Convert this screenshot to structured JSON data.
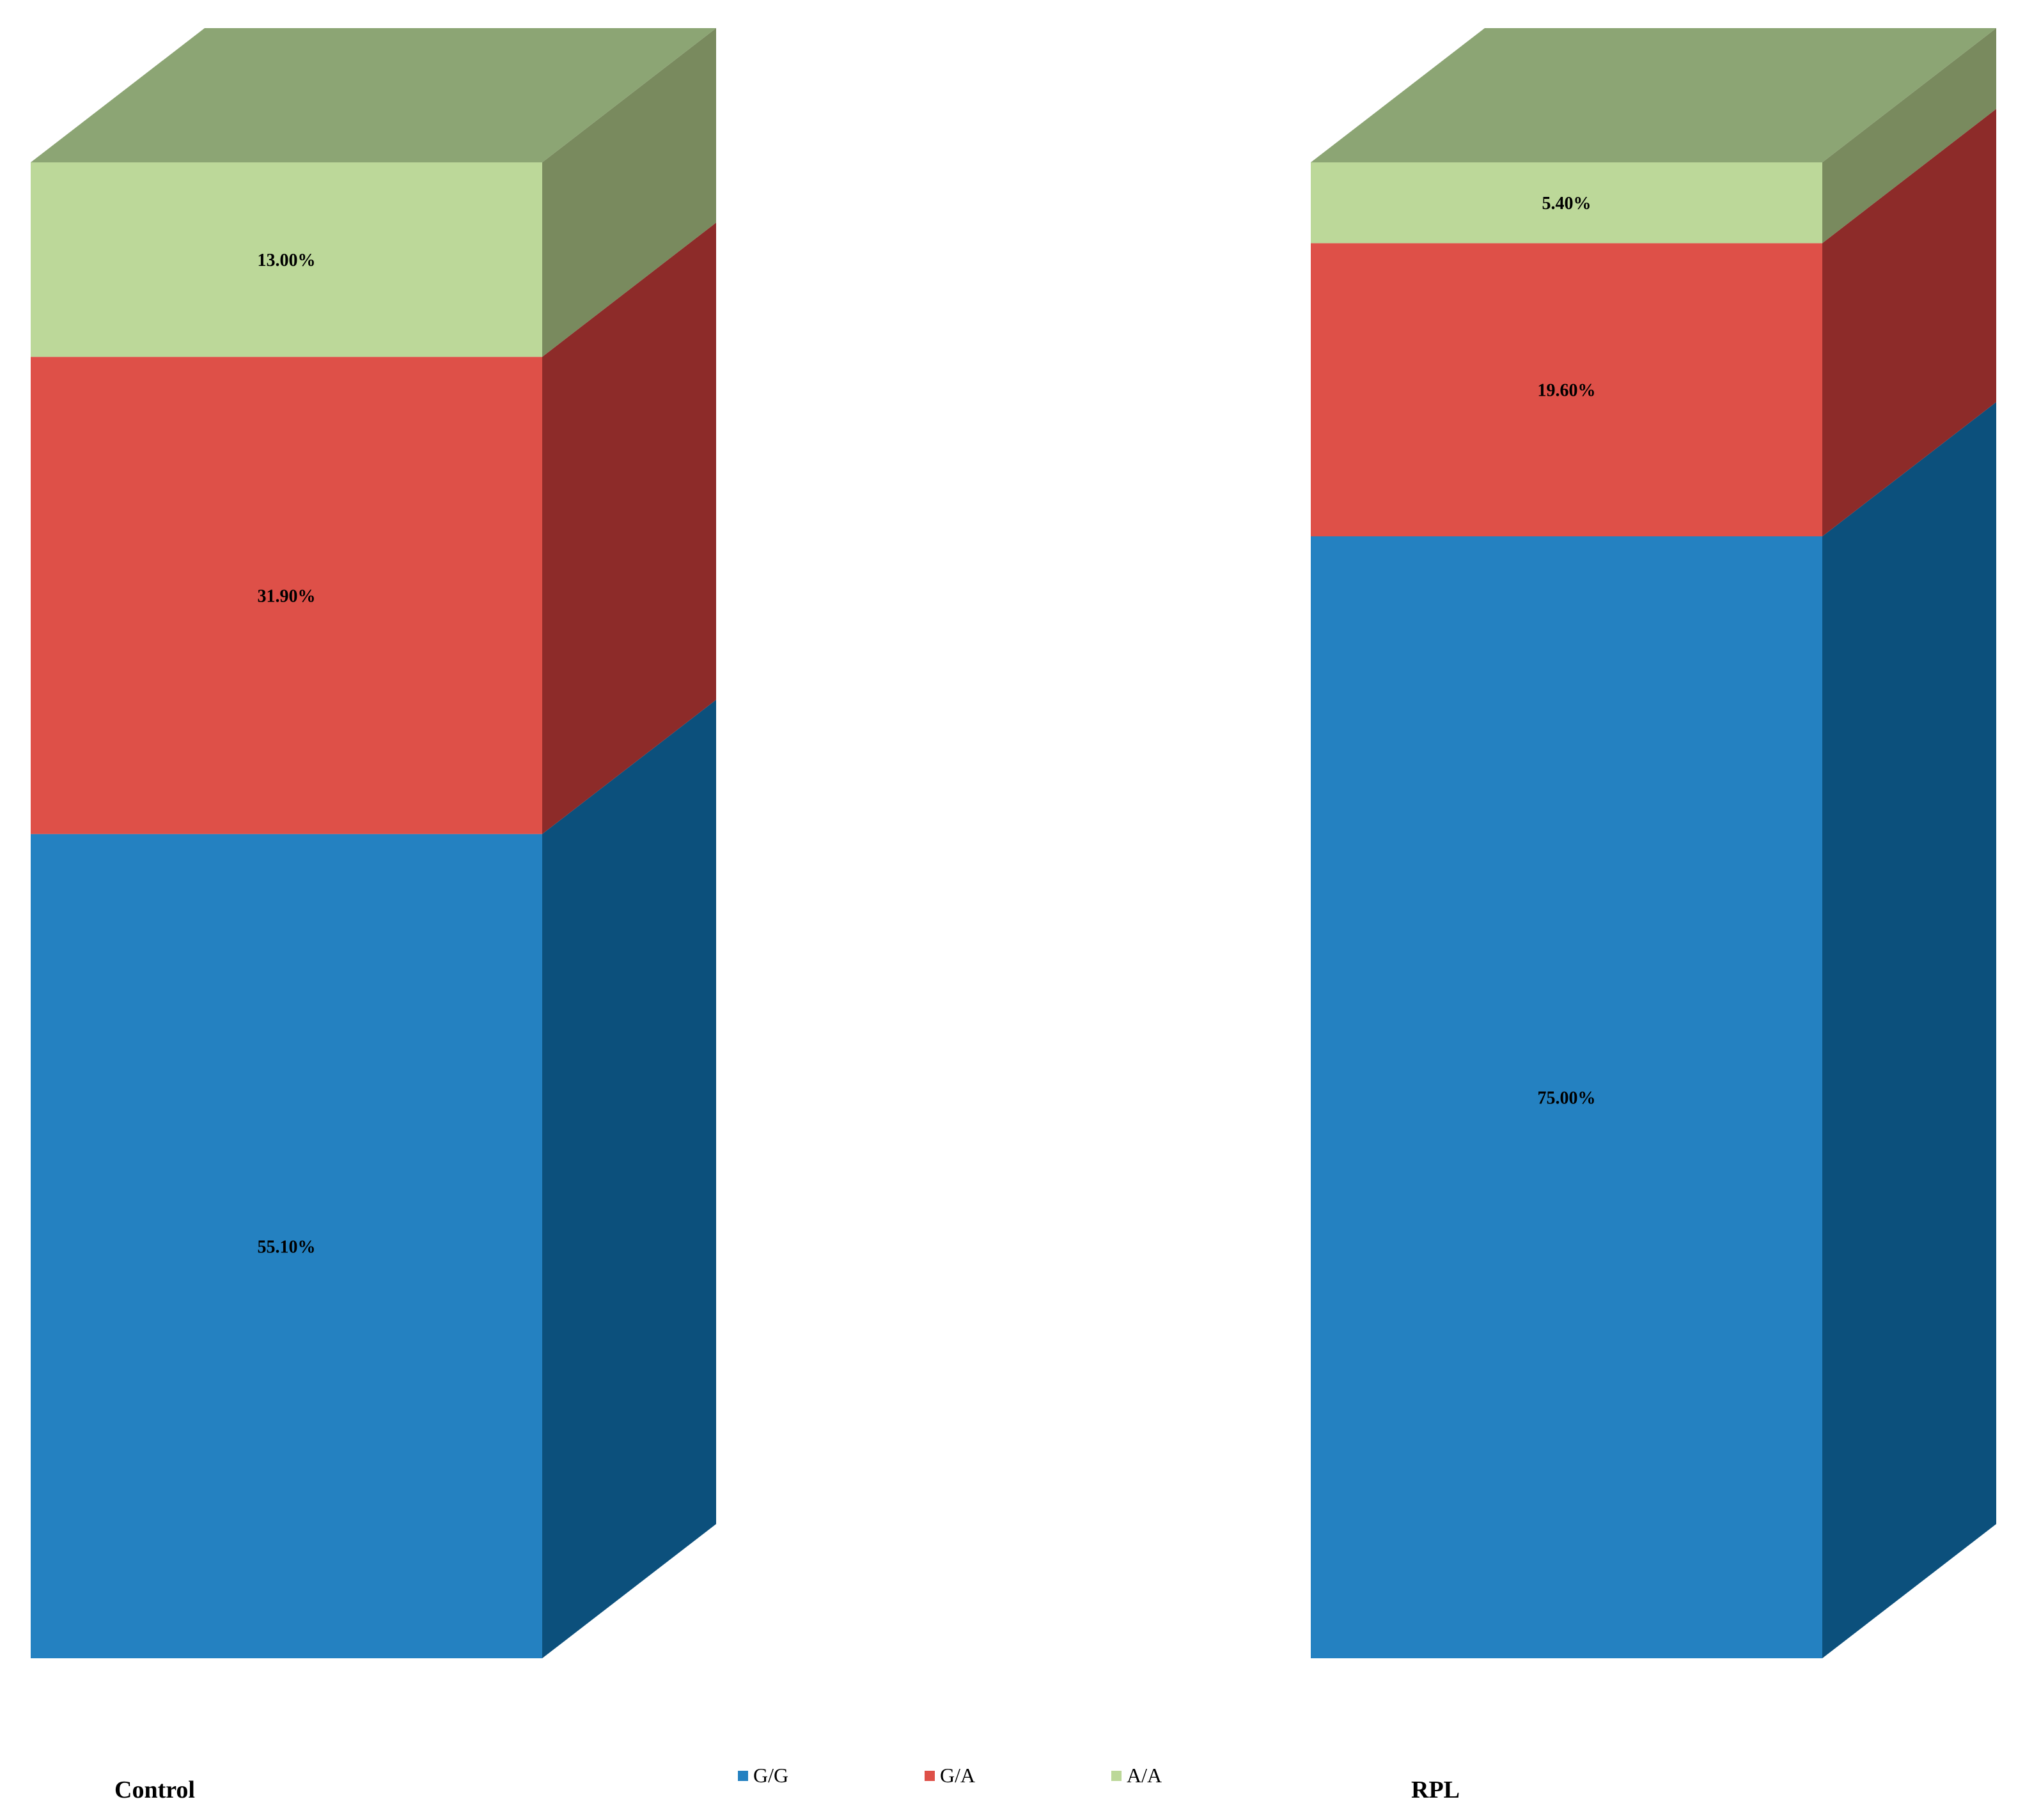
{
  "chart_data": {
    "type": "bar",
    "stacked": true,
    "three_d": true,
    "categories": [
      "Control",
      "RPL"
    ],
    "series": [
      {
        "name": "G/G",
        "values": [
          55.1,
          75.0
        ],
        "labels": [
          "55.10%",
          "75.00%"
        ]
      },
      {
        "name": "G/A",
        "values": [
          31.9,
          19.6
        ],
        "labels": [
          "31.90%",
          "19.60%"
        ]
      },
      {
        "name": "A/A",
        "values": [
          13.0,
          5.4
        ],
        "labels": [
          "13.00%",
          "5.40%"
        ]
      }
    ],
    "ylim": [
      0,
      100
    ],
    "grid": false,
    "legend_position": "bottom",
    "colors": {
      "G/G": {
        "front": "#2481C1",
        "side": "#0C507C",
        "top": "#1B6BA3"
      },
      "G/A": {
        "front": "#DE5048",
        "side": "#8D2B29",
        "top": "#B8403A"
      },
      "A/A": {
        "front": "#BCD899",
        "side": "#798A5E",
        "top": "#8CA574"
      }
    }
  }
}
